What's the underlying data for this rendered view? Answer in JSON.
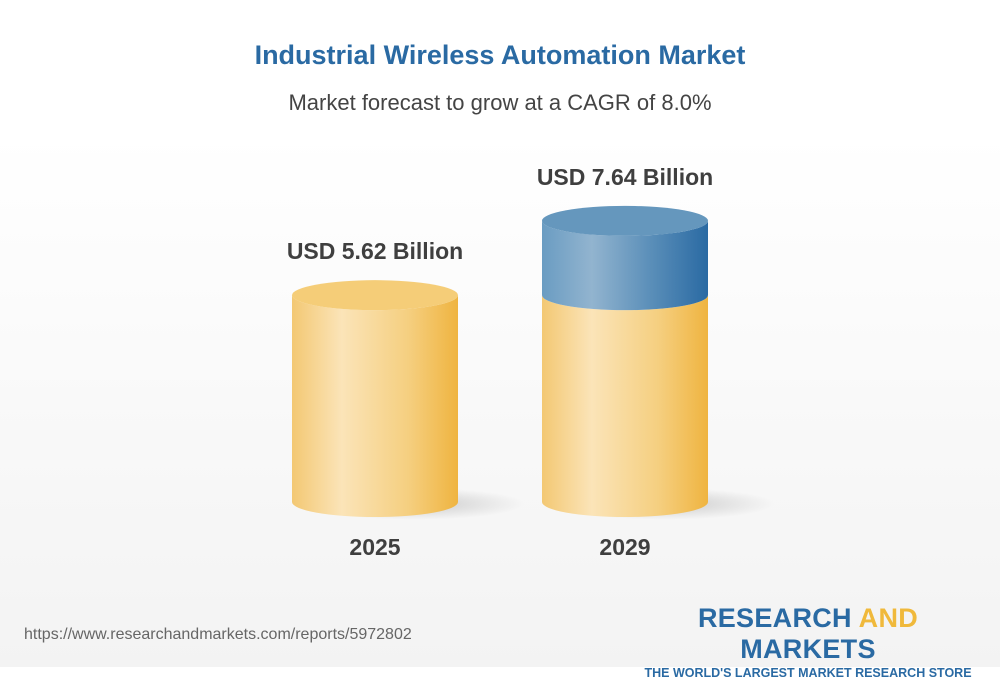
{
  "header": {
    "title": "Industrial Wireless Automation Market",
    "subtitle": "Market forecast to grow at a CAGR of 8.0%"
  },
  "chart_data": {
    "type": "bar",
    "style": "3d-cylinder",
    "categories": [
      "2025",
      "2029"
    ],
    "values": [
      5.62,
      7.64
    ],
    "data_labels": [
      "USD 5.62 Billion",
      "USD 7.64 Billion"
    ],
    "unit": "USD Billion",
    "cagr": "8.0%",
    "colors": {
      "base": "#f2c063",
      "growth": "#2a6aa3"
    }
  },
  "footer": {
    "url": "https://www.researchandmarkets.com/reports/5972802",
    "logo_part1": "RESEARCH ",
    "logo_part2": "AND",
    "logo_part3": " MARKETS",
    "logo_tagline": "THE WORLD'S LARGEST MARKET RESEARCH STORE"
  }
}
